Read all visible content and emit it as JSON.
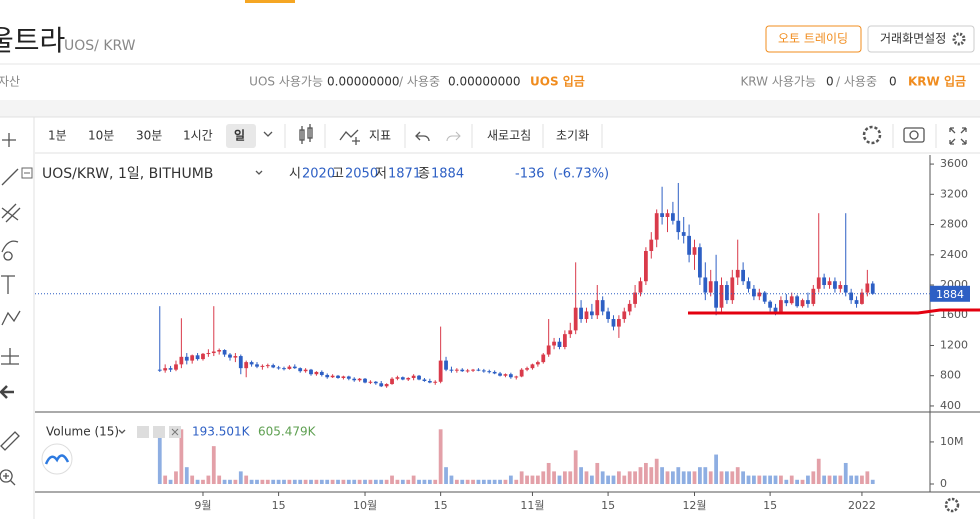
{
  "header": {
    "coin_name": "울트라",
    "pair": "UOS/ KRW",
    "auto_trading": "오토 트레이딩",
    "screen_settings": "거래화면설정"
  },
  "balances": {
    "asset": "자산",
    "uos_available_label": "UOS 사용가능",
    "uos_available": "0.00000000",
    "uos_in_use_label": "/ 사용중",
    "uos_in_use": "0.00000000",
    "uos_deposit": "UOS 입금",
    "krw_available_label": "KRW 사용가능",
    "krw_available": "0",
    "krw_in_use_label": "/ 사용중",
    "krw_in_use": "0",
    "krw_deposit": "KRW 입금"
  },
  "toolbar": {
    "intervals": [
      "1분",
      "10분",
      "30분",
      "1시간",
      "일"
    ],
    "selected_interval": 4,
    "indicators": "지표",
    "refresh": "새로고침",
    "reset": "초기화"
  },
  "chart_data": {
    "type": "candlestick",
    "symbol_label": "UOS/KRW, 1일, BITHUMB",
    "ohlc_labels": [
      "시",
      "고",
      "저",
      "종"
    ],
    "ohlc": [
      2020,
      2050,
      1871,
      1884
    ],
    "change": -136,
    "change_pct": "(-6.73%)",
    "up_color": "#d93a4a",
    "down_color": "#2d5fc4",
    "up_volume_color": "#e3a0a8",
    "down_volume_color": "#8eaee2",
    "price_line": 1884,
    "ylim": [
      320,
      3720
    ],
    "yticks": [
      400,
      800,
      1200,
      1600,
      2000,
      2400,
      2800,
      3200,
      3600
    ],
    "xlim": [
      -23.1,
      142.6
    ],
    "xticks": [
      {
        "value": 8,
        "label": "9월"
      },
      {
        "value": 22,
        "label": "15"
      },
      {
        "value": 38,
        "label": "10월"
      },
      {
        "value": 52,
        "label": "15"
      },
      {
        "value": 69,
        "label": "11월"
      },
      {
        "value": 83,
        "label": "15"
      },
      {
        "value": 99,
        "label": "12월"
      },
      {
        "value": 113,
        "label": "15"
      },
      {
        "value": 130,
        "label": "2022"
      }
    ],
    "volume": {
      "label": "Volume (15)",
      "readings": [
        "193.501K",
        "605.479K"
      ],
      "ylim": [
        -1.9,
        16.4
      ],
      "yticks": [
        0,
        {
          "value": 10,
          "label": "10M"
        }
      ]
    },
    "candles": [
      [
        880,
        1720,
        850,
        870,
        11
      ],
      [
        870,
        950,
        840,
        900,
        2
      ],
      [
        900,
        930,
        850,
        880,
        1
      ],
      [
        880,
        1000,
        860,
        950,
        3
      ],
      [
        950,
        1560,
        900,
        1050,
        13
      ],
      [
        1050,
        1100,
        950,
        1000,
        4
      ],
      [
        1000,
        1080,
        960,
        1070,
        2
      ],
      [
        1070,
        1100,
        1000,
        1020,
        1
      ],
      [
        1020,
        1100,
        1000,
        1090,
        1
      ],
      [
        1090,
        1150,
        1050,
        1100,
        2
      ],
      [
        1100,
        1720,
        1060,
        1120,
        9
      ],
      [
        1120,
        1160,
        1080,
        1140,
        2
      ],
      [
        1140,
        1150,
        1050,
        1080,
        1
      ],
      [
        1080,
        1100,
        1000,
        1040,
        1
      ],
      [
        1040,
        1100,
        980,
        1060,
        1
      ],
      [
        1060,
        1080,
        820,
        900,
        3
      ],
      [
        900,
        1000,
        780,
        980,
        2
      ],
      [
        980,
        1000,
        920,
        950,
        1
      ],
      [
        950,
        980,
        900,
        920,
        1
      ],
      [
        920,
        950,
        880,
        930,
        1
      ],
      [
        930,
        960,
        900,
        940,
        1
      ],
      [
        940,
        960,
        900,
        910,
        1
      ],
      [
        910,
        930,
        880,
        900,
        1
      ],
      [
        900,
        920,
        870,
        890,
        1
      ],
      [
        890,
        940,
        880,
        920,
        1
      ],
      [
        920,
        950,
        890,
        900,
        1
      ],
      [
        900,
        910,
        840,
        860,
        1
      ],
      [
        860,
        900,
        840,
        880,
        1
      ],
      [
        880,
        890,
        800,
        820,
        1
      ],
      [
        820,
        860,
        800,
        850,
        1
      ],
      [
        850,
        870,
        790,
        810,
        1
      ],
      [
        810,
        830,
        760,
        780,
        1
      ],
      [
        780,
        820,
        770,
        800,
        1
      ],
      [
        800,
        810,
        760,
        770,
        1
      ],
      [
        770,
        800,
        750,
        790,
        1
      ],
      [
        790,
        800,
        740,
        760,
        1
      ],
      [
        760,
        780,
        720,
        740,
        1
      ],
      [
        740,
        770,
        720,
        760,
        1
      ],
      [
        760,
        770,
        700,
        710,
        1
      ],
      [
        710,
        740,
        690,
        720,
        1
      ],
      [
        720,
        730,
        680,
        700,
        1
      ],
      [
        700,
        730,
        650,
        660,
        1
      ],
      [
        660,
        700,
        640,
        690,
        1
      ],
      [
        690,
        780,
        680,
        760,
        2
      ],
      [
        760,
        800,
        740,
        780,
        1
      ],
      [
        780,
        790,
        740,
        750,
        1
      ],
      [
        750,
        780,
        730,
        770,
        1
      ],
      [
        770,
        820,
        740,
        800,
        2
      ],
      [
        800,
        810,
        740,
        750,
        1
      ],
      [
        750,
        770,
        720,
        730,
        1
      ],
      [
        730,
        760,
        700,
        710,
        1
      ],
      [
        710,
        740,
        680,
        720,
        1
      ],
      [
        720,
        1450,
        700,
        1000,
        13
      ],
      [
        1000,
        1050,
        860,
        880,
        4
      ],
      [
        880,
        920,
        840,
        870,
        2
      ],
      [
        870,
        900,
        840,
        880,
        1
      ],
      [
        880,
        900,
        850,
        860,
        1
      ],
      [
        860,
        890,
        840,
        870,
        1
      ],
      [
        870,
        890,
        850,
        880,
        1
      ],
      [
        880,
        900,
        860,
        870,
        1
      ],
      [
        870,
        890,
        840,
        860,
        1
      ],
      [
        860,
        880,
        830,
        850,
        1
      ],
      [
        850,
        870,
        820,
        830,
        1
      ],
      [
        830,
        850,
        790,
        800,
        1
      ],
      [
        800,
        830,
        780,
        820,
        1
      ],
      [
        820,
        840,
        760,
        780,
        2
      ],
      [
        780,
        800,
        750,
        790,
        1
      ],
      [
        790,
        900,
        780,
        880,
        3
      ],
      [
        880,
        920,
        860,
        900,
        2
      ],
      [
        900,
        960,
        880,
        950,
        2
      ],
      [
        950,
        1000,
        920,
        980,
        2
      ],
      [
        980,
        1100,
        960,
        1080,
        3
      ],
      [
        1080,
        1550,
        1050,
        1200,
        5
      ],
      [
        1200,
        1300,
        1150,
        1250,
        3
      ],
      [
        1250,
        1300,
        1150,
        1180,
        2
      ],
      [
        1180,
        1400,
        1150,
        1350,
        3
      ],
      [
        1350,
        1500,
        1300,
        1400,
        3
      ],
      [
        1400,
        2300,
        1350,
        1700,
        8
      ],
      [
        1700,
        1800,
        1500,
        1550,
        4
      ],
      [
        1550,
        1700,
        1500,
        1650,
        3
      ],
      [
        1650,
        1750,
        1550,
        1600,
        2
      ],
      [
        1600,
        2000,
        1550,
        1800,
        5
      ],
      [
        1800,
        1850,
        1600,
        1650,
        3
      ],
      [
        1650,
        1700,
        1500,
        1550,
        2
      ],
      [
        1550,
        1600,
        1400,
        1450,
        2
      ],
      [
        1450,
        1600,
        1300,
        1550,
        3
      ],
      [
        1550,
        1700,
        1500,
        1650,
        2
      ],
      [
        1650,
        1800,
        1600,
        1750,
        3
      ],
      [
        1750,
        2000,
        1700,
        1900,
        3
      ],
      [
        1900,
        2100,
        1850,
        2050,
        4
      ],
      [
        2050,
        2500,
        2000,
        2450,
        5
      ],
      [
        2450,
        2700,
        2350,
        2600,
        4
      ],
      [
        2600,
        3000,
        2500,
        2950,
        6
      ],
      [
        2950,
        3300,
        2800,
        2900,
        4
      ],
      [
        2900,
        3000,
        2700,
        2950,
        3
      ],
      [
        2950,
        3100,
        2800,
        2850,
        3
      ],
      [
        2850,
        3350,
        2600,
        2700,
        4
      ],
      [
        2700,
        2900,
        2550,
        2650,
        3
      ],
      [
        2650,
        2800,
        2300,
        2400,
        3
      ],
      [
        2400,
        2600,
        2200,
        2500,
        3
      ],
      [
        2500,
        2550,
        2000,
        2100,
        4
      ],
      [
        2100,
        2300,
        1800,
        1900,
        4
      ],
      [
        1900,
        2200,
        1850,
        2050,
        3
      ],
      [
        2050,
        2400,
        1600,
        1700,
        7
      ],
      [
        1700,
        2100,
        1650,
        2000,
        3
      ],
      [
        2000,
        2050,
        1750,
        1800,
        3
      ],
      [
        1800,
        2200,
        1750,
        2100,
        3
      ],
      [
        2100,
        2600,
        2000,
        2200,
        4
      ],
      [
        2200,
        2300,
        2000,
        2050,
        3
      ],
      [
        2050,
        2100,
        1900,
        1950,
        2
      ],
      [
        1950,
        2000,
        1800,
        1850,
        2
      ],
      [
        1850,
        1950,
        1800,
        1900,
        2
      ],
      [
        1900,
        1920,
        1750,
        1780,
        2
      ],
      [
        1780,
        1800,
        1650,
        1700,
        2
      ],
      [
        1700,
        1750,
        1600,
        1650,
        2
      ],
      [
        1650,
        1850,
        1640,
        1800,
        2
      ],
      [
        1800,
        1880,
        1720,
        1760,
        1
      ],
      [
        1760,
        1900,
        1740,
        1850,
        2
      ],
      [
        1850,
        1870,
        1700,
        1720,
        1
      ],
      [
        1720,
        1820,
        1700,
        1800,
        1
      ],
      [
        1800,
        1900,
        1700,
        1750,
        2
      ],
      [
        1750,
        2000,
        1720,
        1950,
        3
      ],
      [
        1950,
        2950,
        1900,
        2100,
        6
      ],
      [
        2100,
        2150,
        1950,
        2000,
        2
      ],
      [
        2000,
        2100,
        1950,
        2050,
        2
      ],
      [
        2050,
        2100,
        1900,
        1950,
        2
      ],
      [
        1950,
        2050,
        1900,
        2000,
        2
      ],
      [
        2000,
        2950,
        1850,
        1900,
        5
      ],
      [
        1900,
        1950,
        1750,
        1800,
        2
      ],
      [
        1800,
        1850,
        1700,
        1750,
        2
      ],
      [
        1750,
        1950,
        1740,
        1900,
        2
      ],
      [
        1900,
        2200,
        1850,
        2020,
        3
      ],
      [
        2020,
        2050,
        1871,
        1884,
        1
      ]
    ]
  }
}
